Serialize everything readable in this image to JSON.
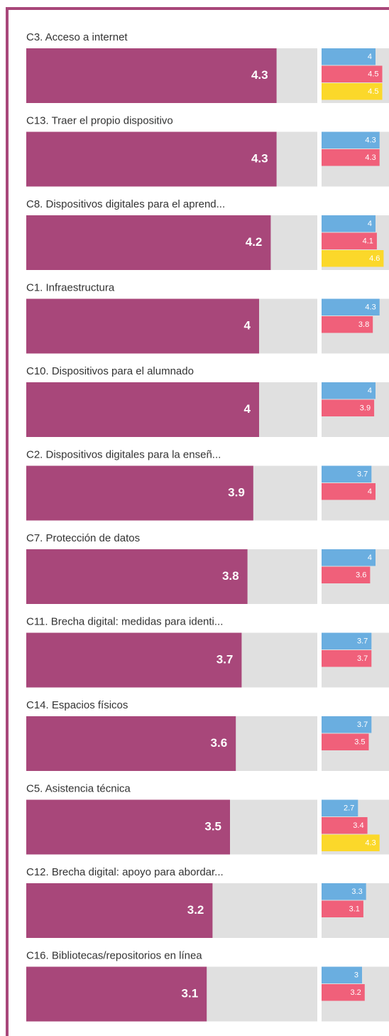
{
  "chart_data": {
    "type": "bar",
    "categories": [
      "C3. Acceso a internet",
      "C13. Traer el propio dispositivo",
      "C8. Dispositivos digitales para el aprend...",
      "C1. Infraestructura",
      "C10. Dispositivos para el alumnado",
      "C2. Dispositivos digitales para la enseñ...",
      "C7. Protección de datos",
      "C11. Brecha digital: medidas para identi...",
      "C14. Espacios físicos",
      "C5. Asistencia técnica",
      "C12. Brecha digital: apoyo para abordar...",
      "C16. Bibliotecas/repositorios en línea"
    ],
    "values": [
      4.3,
      4.3,
      4.2,
      4,
      4,
      3.9,
      3.8,
      3.7,
      3.6,
      3.5,
      3.2,
      3.1
    ],
    "color": "#a8477a",
    "xlim": [
      0,
      5
    ],
    "series": [
      {
        "color": "#6aaee0",
        "values": [
          4,
          4.3,
          4,
          4.3,
          4,
          3.7,
          4,
          3.7,
          3.7,
          2.7,
          3.3,
          3
        ]
      },
      {
        "color": "#f0607a",
        "values": [
          4.5,
          4.3,
          4.1,
          3.8,
          3.9,
          4,
          3.6,
          3.7,
          3.5,
          3.4,
          3.1,
          3.2
        ]
      },
      {
        "color": "#fbd82a",
        "values": [
          4.5,
          null,
          4.6,
          null,
          null,
          null,
          null,
          null,
          null,
          4.3,
          null,
          null
        ]
      }
    ]
  }
}
